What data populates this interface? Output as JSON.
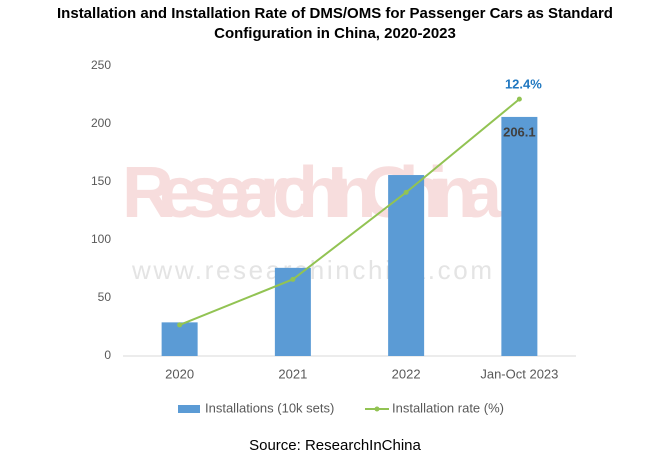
{
  "chart_data": {
    "type": "bar_line",
    "title": [
      "Installation and Installation Rate of DMS/OMS for Passenger Cars as Standard",
      "Configuration in China, 2020-2023"
    ],
    "categories": [
      "2020",
      "2021",
      "2022",
      "Jan-Oct 2023"
    ],
    "series": [
      {
        "name": "Installations (10k sets)",
        "type": "bar",
        "color": "#5b9bd5",
        "values": [
          29,
          76,
          156,
          206.1
        ],
        "value_labels": [
          null,
          null,
          null,
          "206.1"
        ]
      },
      {
        "name": "Installation rate (%)",
        "type": "line",
        "axis": "y2",
        "color": "#92c353",
        "values": [
          1.5,
          3.7,
          7.9,
          12.4
        ],
        "value_labels": [
          null,
          null,
          null,
          "12.4%"
        ]
      }
    ],
    "ylim": [
      0,
      250
    ],
    "yticks": [
      0,
      50,
      100,
      150,
      200,
      250
    ],
    "y2lim": [
      0,
      14
    ],
    "legend": "bottom",
    "watermark": [
      "ResearchInChina",
      "www.researchinchina.com"
    ],
    "source": "Source: ResearchInChina"
  }
}
